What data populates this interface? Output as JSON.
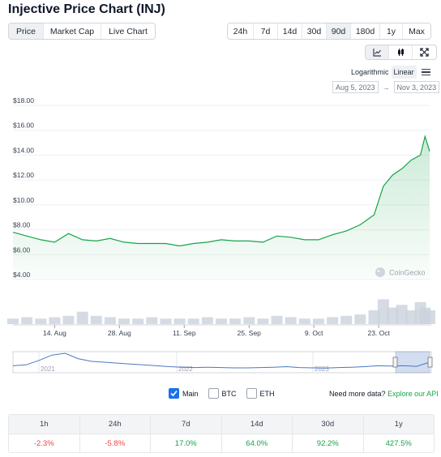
{
  "title": "Injective Price Chart (INJ)",
  "view_tabs": [
    {
      "label": "Price",
      "active": true
    },
    {
      "label": "Market Cap",
      "active": false
    },
    {
      "label": "Live Chart",
      "active": false
    }
  ],
  "range_tabs": [
    {
      "label": "24h",
      "active": false
    },
    {
      "label": "7d",
      "active": false
    },
    {
      "label": "14d",
      "active": false
    },
    {
      "label": "30d",
      "active": false
    },
    {
      "label": "90d",
      "active": true
    },
    {
      "label": "180d",
      "active": false
    },
    {
      "label": "1y",
      "active": false
    },
    {
      "label": "Max",
      "active": false
    }
  ],
  "chart_tools": [
    {
      "icon": "line-chart-icon",
      "active": true
    },
    {
      "icon": "candlestick-icon",
      "active": false
    },
    {
      "icon": "fullscreen-icon",
      "active": false
    }
  ],
  "scale": {
    "logarithmic": "Logarithmic",
    "linear": "Linear",
    "active": "linear"
  },
  "date_range": {
    "from": "Aug 5, 2023",
    "arrow": "→",
    "to": "Nov 3, 2023"
  },
  "watermark": "CoinGecko",
  "colors": {
    "line": "#16a34a",
    "navigator": "#4a78c2",
    "negative": "#ef4444",
    "positive": "#16a34a",
    "checkbox": "#1a73e8"
  },
  "chart_data": {
    "type": "line",
    "series": [
      {
        "x": [
          "2023-08-05",
          "2023-08-08",
          "2023-08-11",
          "2023-08-14",
          "2023-08-17",
          "2023-08-20",
          "2023-08-23",
          "2023-08-26",
          "2023-08-29",
          "2023-09-01",
          "2023-09-04",
          "2023-09-07",
          "2023-09-10",
          "2023-09-13",
          "2023-09-16",
          "2023-09-19",
          "2023-09-22",
          "2023-09-25",
          "2023-09-28",
          "2023-10-01",
          "2023-10-04",
          "2023-10-07",
          "2023-10-10",
          "2023-10-13",
          "2023-10-16",
          "2023-10-19",
          "2023-10-22",
          "2023-10-24",
          "2023-10-26",
          "2023-10-28",
          "2023-10-30",
          "2023-11-01",
          "2023-11-02",
          "2023-11-03"
        ],
        "values": [
          7.8,
          7.5,
          7.2,
          7.0,
          7.7,
          7.2,
          7.1,
          7.3,
          7.0,
          6.9,
          6.9,
          6.9,
          6.7,
          6.9,
          7.0,
          7.2,
          7.1,
          7.1,
          7.0,
          7.5,
          7.4,
          7.2,
          7.2,
          7.6,
          7.9,
          8.4,
          9.2,
          11.5,
          12.4,
          12.9,
          13.6,
          14.0,
          15.5,
          14.3
        ]
      }
    ],
    "y_ticks": [
      "$18.00",
      "$16.00",
      "$14.00",
      "$12.00",
      "$10.00",
      "$8.00",
      "$6.00",
      "$4.00"
    ],
    "x_ticks": [
      "14. Aug",
      "28. Aug",
      "11. Sep",
      "25. Sep",
      "9. Oct",
      "23. Oct"
    ],
    "ylim": [
      4,
      18
    ],
    "volume": [
      0.2,
      0.25,
      0.2,
      0.25,
      0.3,
      0.45,
      0.3,
      0.25,
      0.2,
      0.2,
      0.25,
      0.2,
      0.2,
      0.2,
      0.25,
      0.2,
      0.2,
      0.25,
      0.2,
      0.3,
      0.25,
      0.2,
      0.2,
      0.25,
      0.3,
      0.35,
      0.5,
      0.9,
      0.6,
      0.7,
      0.5,
      0.8,
      0.6,
      0.5
    ],
    "navigator": {
      "years": [
        "2021",
        "2022",
        "2023"
      ],
      "values": [
        0.3,
        0.35,
        0.6,
        0.9,
        1.0,
        0.7,
        0.55,
        0.5,
        0.45,
        0.4,
        0.35,
        0.3,
        0.25,
        0.22,
        0.2,
        0.22,
        0.2,
        0.18,
        0.18,
        0.2,
        0.22,
        0.25,
        0.2,
        0.18,
        0.17,
        0.2,
        0.22,
        0.25,
        0.3,
        0.28,
        0.3,
        0.27,
        0.5
      ]
    }
  },
  "legend": [
    {
      "label": "Main",
      "checked": true
    },
    {
      "label": "BTC",
      "checked": false
    },
    {
      "label": "ETH",
      "checked": false
    }
  ],
  "api_note": {
    "text": "Need more data?",
    "link": "Explore our API"
  },
  "stats": {
    "headers": [
      "1h",
      "24h",
      "7d",
      "14d",
      "30d",
      "1y"
    ],
    "values": [
      {
        "value": "-2.3%",
        "trend": "negative"
      },
      {
        "value": "-5.8%",
        "trend": "negative"
      },
      {
        "value": "17.0%",
        "trend": "positive"
      },
      {
        "value": "64.0%",
        "trend": "positive"
      },
      {
        "value": "92.2%",
        "trend": "positive"
      },
      {
        "value": "427.5%",
        "trend": "positive"
      }
    ]
  }
}
